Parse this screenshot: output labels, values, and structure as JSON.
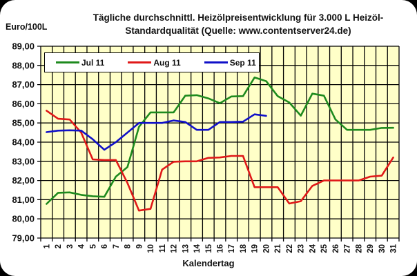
{
  "chart": {
    "title_line1": "Tägliche durchschnittl. Heizölpreisentwicklung für 3.000 L Heizöl-",
    "title_line2": "Standardqualität (Quelle: www.contentserver24.de)",
    "ylabel": "Euro/100L",
    "xlabel": "Kalendertag",
    "legend": [
      {
        "label": "Jul 11",
        "color": "#1e8a1e"
      },
      {
        "label": "Aug 11",
        "color": "#e01818"
      },
      {
        "label": "Sep 11",
        "color": "#1010c8"
      }
    ],
    "plot_background": "#ffffc8"
  },
  "chart_data": {
    "type": "line",
    "title": "Tägliche durchschnittl. Heizölpreisentwicklung für 3.000 L Heizöl-Standardqualität (Quelle: www.contentserver24.de)",
    "xlabel": "Kalendertag",
    "ylabel": "Euro/100L",
    "ylim": [
      79,
      89
    ],
    "yticks": [
      "79,00",
      "80,00",
      "81,00",
      "82,00",
      "83,00",
      "84,00",
      "85,00",
      "86,00",
      "87,00",
      "88,00",
      "89,00"
    ],
    "x": [
      1,
      2,
      3,
      4,
      5,
      6,
      7,
      8,
      9,
      10,
      11,
      12,
      13,
      14,
      15,
      16,
      17,
      18,
      19,
      20,
      21,
      22,
      23,
      24,
      25,
      26,
      27,
      28,
      29,
      30,
      31
    ],
    "grid": true,
    "legend_position": "top-left inside",
    "series": [
      {
        "name": "Jul 11",
        "color": "#1e8a1e",
        "values": [
          80.78,
          81.36,
          81.38,
          81.25,
          81.18,
          81.15,
          82.2,
          82.7,
          84.8,
          85.55,
          85.55,
          85.55,
          86.42,
          86.45,
          86.28,
          86.03,
          86.38,
          86.4,
          87.37,
          87.18,
          86.4,
          86.07,
          85.38,
          86.53,
          86.42,
          85.18,
          84.64,
          84.64,
          84.64,
          84.74,
          84.75
        ]
      },
      {
        "name": "Aug 11",
        "color": "#e01818",
        "values": [
          85.64,
          85.22,
          85.18,
          84.5,
          83.1,
          83.07,
          83.07,
          81.87,
          80.43,
          80.52,
          82.57,
          82.98,
          83.0,
          83.0,
          83.18,
          83.2,
          83.28,
          83.28,
          81.65,
          81.65,
          81.65,
          80.8,
          80.92,
          81.72,
          82.0,
          82.0,
          82.0,
          82.0,
          82.2,
          82.25,
          83.2
        ]
      },
      {
        "name": "Sep 11",
        "color": "#1010c8",
        "values": [
          84.52,
          84.6,
          84.62,
          84.6,
          84.15,
          83.6,
          84.0,
          84.5,
          85.0,
          85.0,
          85.0,
          85.13,
          85.05,
          84.64,
          84.64,
          85.05,
          85.05,
          85.07,
          85.45,
          85.37,
          null,
          null,
          null,
          null,
          null,
          null,
          null,
          null,
          null,
          null,
          null
        ]
      }
    ]
  }
}
